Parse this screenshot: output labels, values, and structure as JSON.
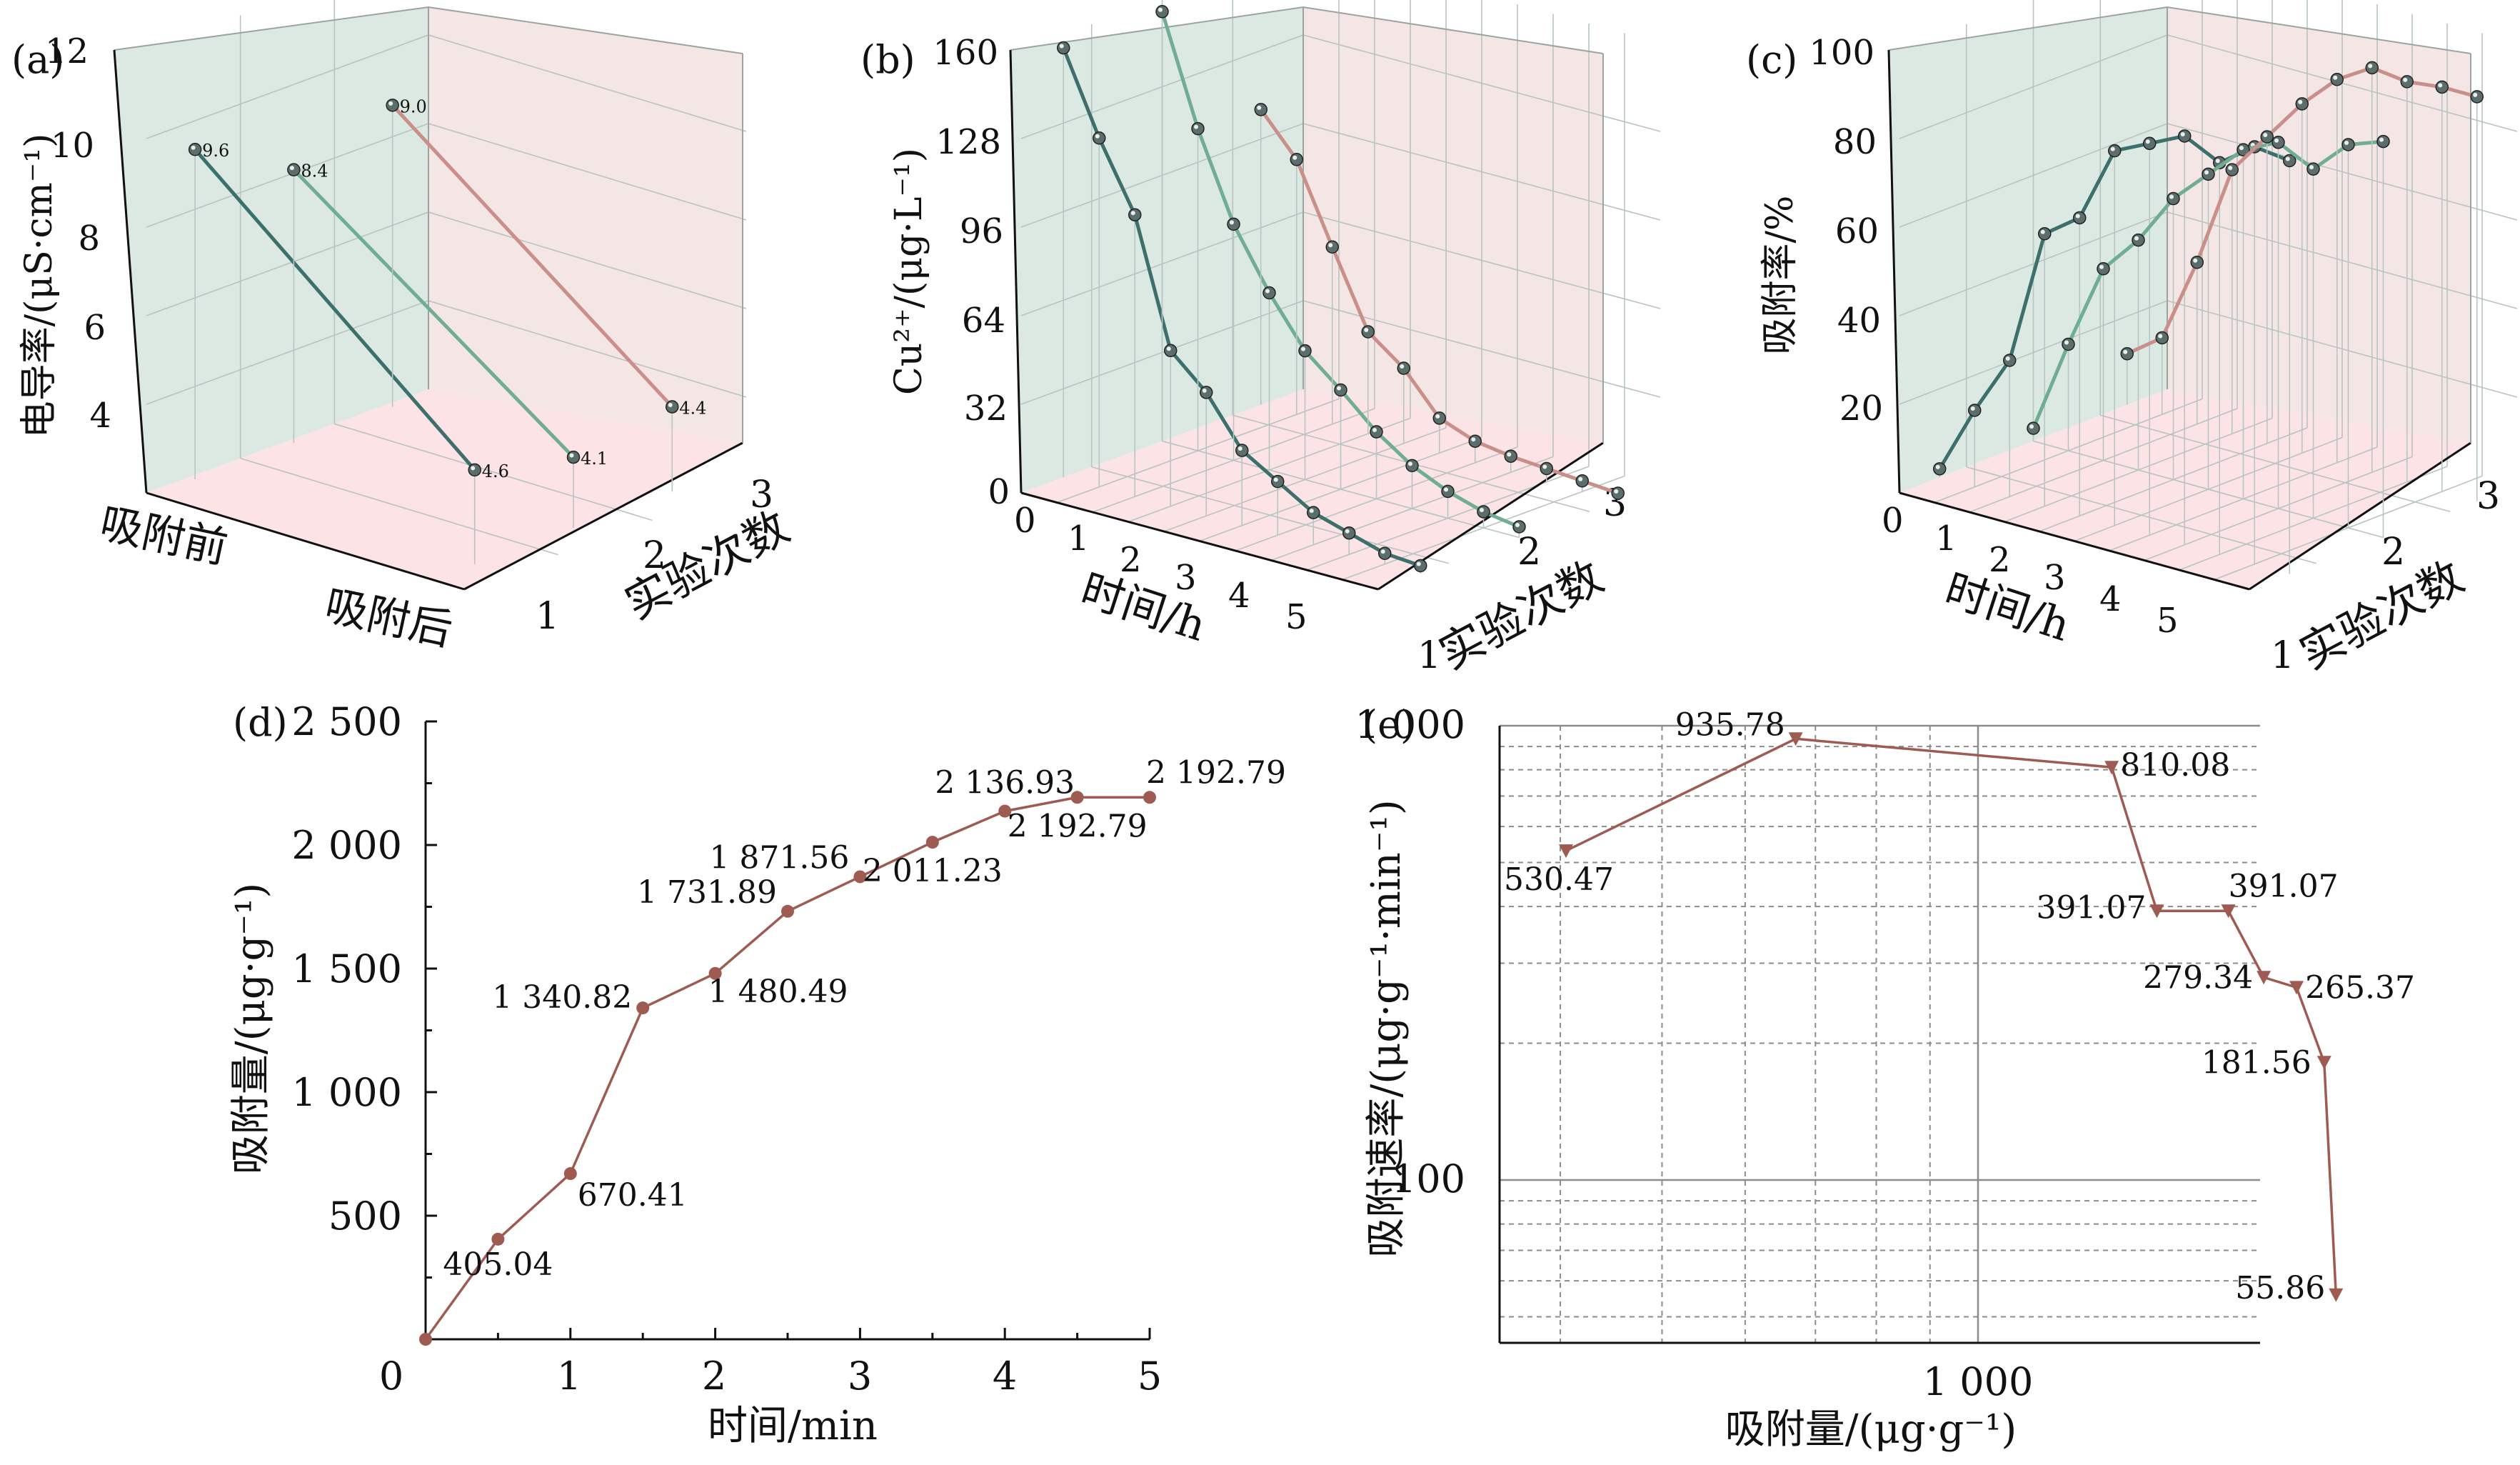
{
  "colors": {
    "teal_dark": "#3d6f6c",
    "teal_light": "#71ad93",
    "rose": "#c9908a",
    "rose_line": "#9e5b52",
    "wall_green": "#dbe9e2",
    "wall_pink": "#f4e6e5",
    "floor_pink": "#fbe3e6"
  },
  "chart_data": [
    {
      "id": "a",
      "panel_label": "(a)",
      "type": "line",
      "ylabel": "电导率/(μS·cm⁻¹)",
      "y_ticks": [
        "12",
        "10",
        "8",
        "6",
        "4"
      ],
      "x_categories": [
        "吸附前",
        "吸附后"
      ],
      "depth_label": "实验次数",
      "depth_ticks": [
        "3",
        "2",
        "1"
      ],
      "series": [
        {
          "experiment": "1",
          "values": [
            9.6,
            4.6
          ],
          "labels": [
            "9.6",
            "4.6"
          ]
        },
        {
          "experiment": "2",
          "values": [
            8.4,
            4.1
          ],
          "labels": [
            "8.4",
            "4.1"
          ]
        },
        {
          "experiment": "3",
          "values": [
            9.0,
            4.4
          ],
          "labels": [
            "9.0",
            "4.4"
          ]
        }
      ]
    },
    {
      "id": "b",
      "panel_label": "(b)",
      "type": "line",
      "ylabel": "Cu²⁺/(μg·L⁻¹)",
      "y_ticks": [
        "160",
        "128",
        "96",
        "64",
        "32",
        "0"
      ],
      "xlabel": "时间/h",
      "x_ticks": [
        "0",
        "1",
        "2",
        "3",
        "4",
        "5"
      ],
      "depth_label": "实验次数",
      "depth_ticks": [
        "3",
        "2",
        "1"
      ],
      "series": [
        {
          "experiment": "1",
          "x": [
            0,
            0.5,
            1,
            1.5,
            2,
            2.5,
            3,
            3.5,
            4,
            4.5,
            5
          ],
          "values": [
            160,
            130,
            105,
            58,
            46,
            28,
            20,
            12,
            8,
            4,
            3
          ]
        },
        {
          "experiment": "2",
          "x": [
            0,
            0.5,
            1,
            1.5,
            2,
            2.5,
            3,
            3.5,
            4,
            4.5,
            5
          ],
          "values": [
            160,
            120,
            88,
            66,
            48,
            37,
            25,
            16,
            10,
            6,
            4
          ]
        },
        {
          "experiment": "3",
          "x": [
            0,
            0.5,
            1,
            1.5,
            2,
            2.5,
            3,
            3.5,
            4,
            4.5,
            5
          ],
          "values": [
            110,
            95,
            66,
            38,
            28,
            13,
            8,
            6,
            5,
            4,
            3
          ]
        }
      ]
    },
    {
      "id": "c",
      "panel_label": "(c)",
      "type": "line",
      "ylabel": "吸附率/%",
      "y_ticks": [
        "100",
        "80",
        "60",
        "40",
        "20"
      ],
      "xlabel": "时间/h",
      "x_ticks": [
        "0",
        "1",
        "2",
        "3",
        "4",
        "5"
      ],
      "depth_label": "实验次数",
      "depth_ticks": [
        "3",
        "2",
        "1"
      ],
      "series": [
        {
          "experiment": "1",
          "x": [
            0,
            0.5,
            1,
            1.5,
            2,
            2.5,
            3,
            3.5,
            4,
            4.5,
            5
          ],
          "values": [
            2,
            18,
            32,
            64,
            70,
            88,
            92,
            96,
            92,
            98,
            97
          ]
        },
        {
          "experiment": "2",
          "x": [
            0,
            0.5,
            1,
            1.5,
            2,
            2.5,
            3,
            3.5,
            4,
            4.5,
            5
          ],
          "values": [
            3,
            25,
            45,
            54,
            66,
            74,
            82,
            86,
            82,
            90,
            93
          ]
        },
        {
          "experiment": "3",
          "x": [
            0,
            0.5,
            1,
            1.5,
            2,
            2.5,
            3,
            3.5,
            4,
            4.5,
            5
          ],
          "values": [
            12,
            18,
            38,
            62,
            72,
            82,
            90,
            95,
            94,
            95,
            95
          ]
        }
      ]
    },
    {
      "id": "d",
      "panel_label": "(d)",
      "type": "line",
      "xlabel": "时间/min",
      "ylabel": "吸附量/(μg·g⁻¹)",
      "xlim": [
        0,
        5
      ],
      "ylim": [
        0,
        2500
      ],
      "x_ticks": [
        "0",
        "1",
        "2",
        "3",
        "4",
        "5"
      ],
      "y_ticks": [
        "2 500",
        "2 000",
        "1 500",
        "1 000",
        "500"
      ],
      "x": [
        0,
        0.5,
        1,
        1.5,
        2,
        2.5,
        3,
        3.5,
        4,
        4.5,
        5
      ],
      "values": [
        0,
        405.04,
        670.41,
        1340.82,
        1480.49,
        1731.89,
        1871.56,
        2011.23,
        2136.93,
        2192.79,
        2192.79
      ],
      "point_labels": [
        "",
        "405.04",
        "670.41",
        "1 340.82",
        "1 480.49",
        "1 731.89",
        "1 871.56",
        "2 011.23",
        "2 136.93",
        "2 192.79",
        "2 192.79"
      ]
    },
    {
      "id": "e",
      "panel_label": "(e)",
      "type": "line",
      "xscale": "log",
      "yscale": "log",
      "xlabel": "吸附量/(μg·g⁻¹)",
      "ylabel": "吸附速率/(μg·g⁻¹·min⁻¹)",
      "x_ticks": [
        "1 000"
      ],
      "y_ticks": [
        "1 000",
        "100"
      ],
      "grid": true,
      "x": [
        405.04,
        670.41,
        1340.82,
        1480.49,
        1731.89,
        1871.56,
        2011.23,
        2136.93,
        2192.79
      ],
      "values": [
        530.47,
        935.78,
        810.08,
        391.07,
        391.07,
        279.34,
        265.37,
        181.56,
        55.86
      ],
      "point_labels": [
        "530.47",
        "935.78",
        "810.08",
        "391.07",
        "391.07",
        "279.34",
        "265.37",
        "181.56",
        "55.86"
      ]
    }
  ]
}
